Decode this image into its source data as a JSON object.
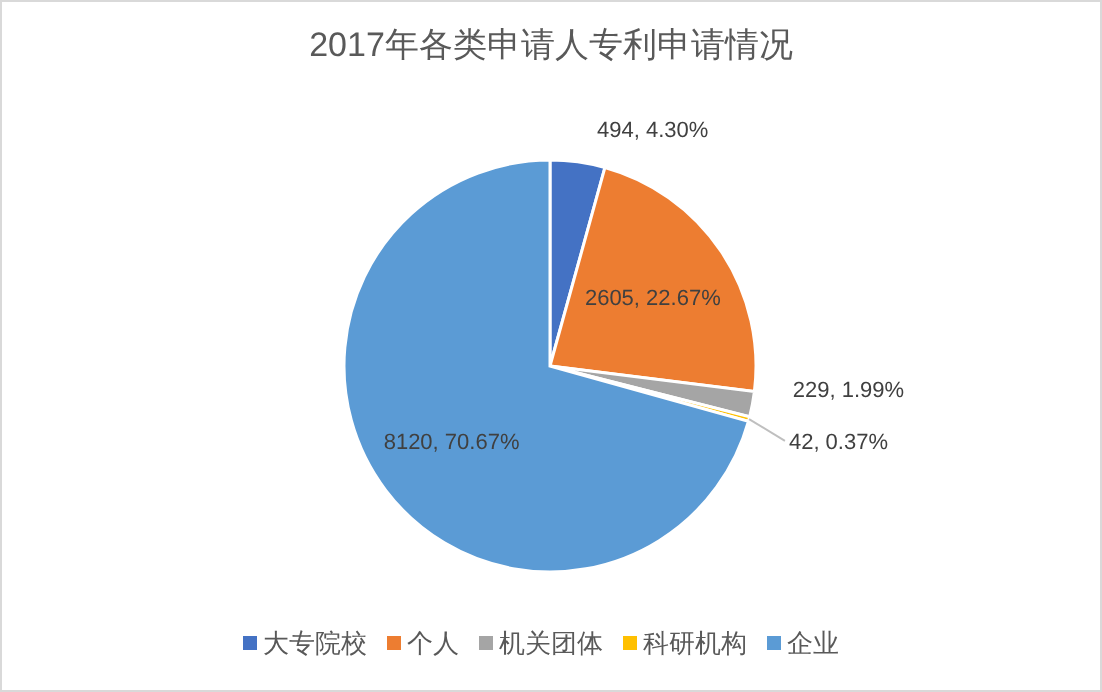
{
  "chart_data": {
    "type": "pie",
    "title": "2017年各类申请人专利申请情况",
    "categories": [
      "大专院校",
      "个人",
      "机关团体",
      "科研机构",
      "企业"
    ],
    "values": [
      494,
      2605,
      229,
      42,
      8120
    ],
    "colors": [
      "#4472c4",
      "#ed7d31",
      "#a5a5a5",
      "#ffc000",
      "#5b9bd5"
    ],
    "value_labels": [
      "494, 4.30%",
      "2605, 22.67%",
      "229, 1.99%",
      "42, 0.37%",
      "8120, 70.67%"
    ],
    "legend": "bottom"
  }
}
